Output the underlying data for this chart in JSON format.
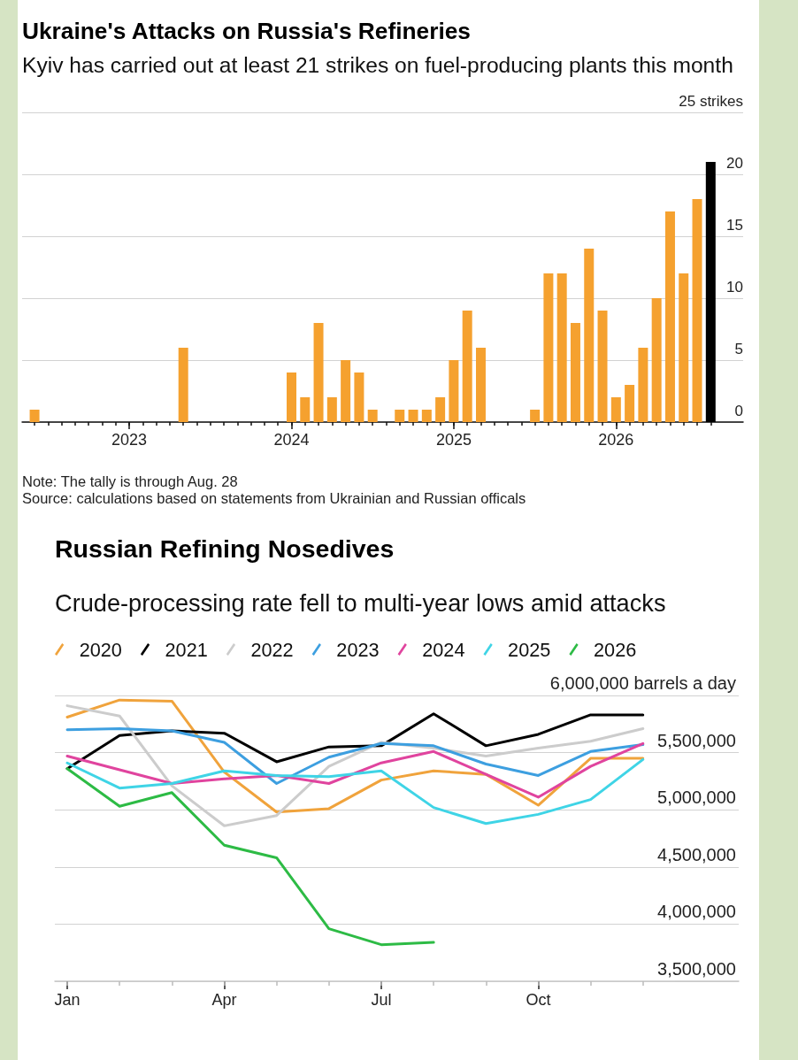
{
  "chart_data": [
    {
      "type": "bar",
      "title": "Ukraine's Attacks on Russia's Refineries",
      "subtitle": "Kyiv has carried out at least 21 strikes on fuel-producing plants this month",
      "categories": [
        null,
        null,
        null,
        null,
        null,
        null,
        null,
        "2023",
        null,
        null,
        null,
        null,
        null,
        null,
        null,
        null,
        null,
        null,
        null,
        "2024",
        null,
        null,
        null,
        null,
        null,
        null,
        null,
        null,
        null,
        null,
        null,
        "2025",
        null,
        null,
        null,
        null,
        null,
        null,
        null,
        null,
        null,
        null,
        null,
        "2026",
        null,
        null,
        null,
        null,
        null,
        null,
        null
      ],
      "values": [
        1,
        0,
        0,
        0,
        0,
        0,
        0,
        0,
        0,
        0,
        0,
        6,
        0,
        0,
        0,
        0,
        0,
        0,
        0,
        4,
        2,
        8,
        2,
        5,
        4,
        1,
        0,
        1,
        1,
        1,
        2,
        5,
        9,
        6,
        0,
        0,
        0,
        1,
        12,
        12,
        8,
        14,
        9,
        2,
        3,
        6,
        10,
        17,
        12,
        18,
        21
      ],
      "colors": [
        "#f5a12f",
        "#f5a12f",
        "#f5a12f",
        "#f5a12f",
        "#f5a12f",
        "#f5a12f",
        "#f5a12f",
        "#f5a12f",
        "#f5a12f",
        "#f5a12f",
        "#f5a12f",
        "#f5a12f",
        "#f5a12f",
        "#f5a12f",
        "#f5a12f",
        "#f5a12f",
        "#f5a12f",
        "#f5a12f",
        "#f5a12f",
        "#f5a12f",
        "#f5a12f",
        "#f5a12f",
        "#f5a12f",
        "#f5a12f",
        "#f5a12f",
        "#f5a12f",
        "#f5a12f",
        "#f5a12f",
        "#f5a12f",
        "#f5a12f",
        "#f5a12f",
        "#f5a12f",
        "#f5a12f",
        "#f5a12f",
        "#f5a12f",
        "#f5a12f",
        "#f5a12f",
        "#f5a12f",
        "#f5a12f",
        "#f5a12f",
        "#f5a12f",
        "#f5a12f",
        "#f5a12f",
        "#f5a12f",
        "#f5a12f",
        "#f5a12f",
        "#f5a12f",
        "#f5a12f",
        "#f5a12f",
        "#f5a12f",
        "#000000"
      ],
      "ylim": [
        0,
        25
      ],
      "yticks": [
        0,
        5,
        10,
        15,
        20,
        {
          "value": 25,
          "label": "25 strikes"
        }
      ],
      "grid": "y",
      "annotations": [
        "Note: The tally is through Aug. 28",
        "Source: calculations based on statements from Ukrainian and Russian officals"
      ]
    },
    {
      "type": "line",
      "title": "Russian Refining Nosedives",
      "subtitle": "Crude-processing rate fell to multi-year lows amid attacks",
      "categories": [
        "Jan",
        null,
        null,
        "Apr",
        null,
        null,
        "Jul",
        null,
        null,
        "Oct",
        null,
        null
      ],
      "series": [
        {
          "name": "2020",
          "color": "#f0a33c",
          "values": [
            5810000,
            5960000,
            5950000,
            5330000,
            4980000,
            5010000,
            5260000,
            5340000,
            5310000,
            5040000,
            5450000,
            5450000
          ]
        },
        {
          "name": "2021",
          "color": "#000000",
          "values": [
            5360000,
            5650000,
            5690000,
            5670000,
            5420000,
            5550000,
            5560000,
            5840000,
            5560000,
            5660000,
            5830000,
            5830000
          ]
        },
        {
          "name": "2022",
          "color": "#cccccc",
          "values": [
            5910000,
            5820000,
            5210000,
            4860000,
            4950000,
            5380000,
            5590000,
            5540000,
            5470000,
            5540000,
            5600000,
            5710000
          ]
        },
        {
          "name": "2023",
          "color": "#3d9fe0",
          "values": [
            5700000,
            5710000,
            5690000,
            5590000,
            5230000,
            5460000,
            5580000,
            5560000,
            5400000,
            5300000,
            5510000,
            5570000
          ]
        },
        {
          "name": "2024",
          "color": "#e0449e",
          "values": [
            5470000,
            5350000,
            5230000,
            5270000,
            5300000,
            5230000,
            5410000,
            5510000,
            5310000,
            5110000,
            5380000,
            5580000
          ]
        },
        {
          "name": "2025",
          "color": "#3fd4e6",
          "values": [
            5410000,
            5190000,
            5230000,
            5340000,
            5300000,
            5290000,
            5340000,
            5020000,
            4880000,
            4960000,
            5090000,
            5440000
          ]
        },
        {
          "name": "2026",
          "color": "#2dbb45",
          "values": [
            5360000,
            5030000,
            5150000,
            4690000,
            4580000,
            3960000,
            3820000,
            3840000,
            null,
            null,
            null,
            null
          ]
        }
      ],
      "ylim": [
        3500000,
        6000000
      ],
      "yticks": [
        {
          "value": 3500000,
          "label": "3,500,000"
        },
        {
          "value": 4000000,
          "label": "4,000,000"
        },
        {
          "value": 4500000,
          "label": "4,500,000"
        },
        {
          "value": 5000000,
          "label": "5,000,000"
        },
        {
          "value": 5500000,
          "label": "5,500,000"
        },
        {
          "value": 6000000,
          "label": "6,000,000 barrels a day"
        }
      ],
      "grid": "y",
      "legend": "top left",
      "marker": "none"
    }
  ]
}
